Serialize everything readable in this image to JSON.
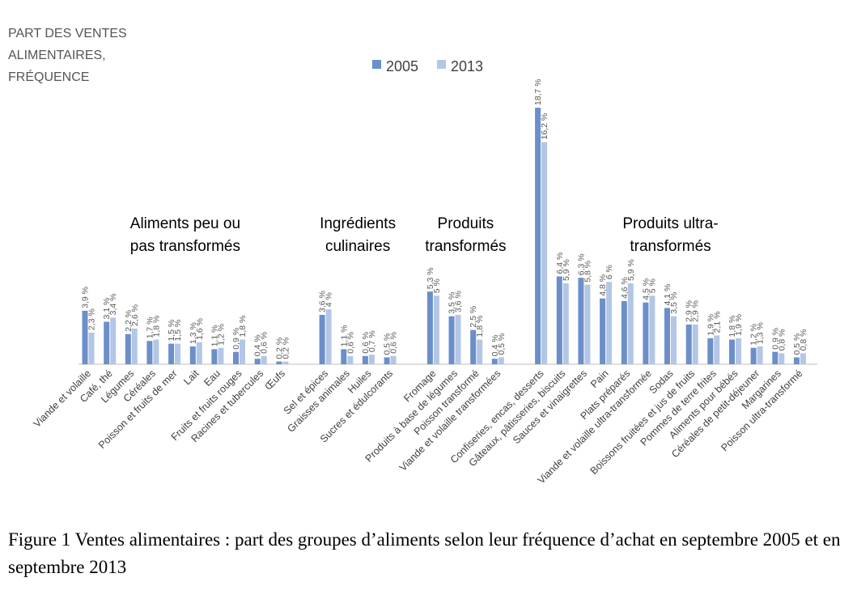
{
  "colors": {
    "2005": "#6b8fc9",
    "2013": "#b3c6e6"
  },
  "caption": "Figure 1 Ventes alimentaires : part des groupes d’aliments selon leur fréquence d’achat en septembre 2005 et en septembre 2013",
  "chart_data": {
    "type": "bar",
    "ylabel": [
      "PART DES VENTES",
      "ALIMENTAIRES,",
      "FRÉQUENCE"
    ],
    "legend": {
      "position": "top-center"
    },
    "grid": false,
    "ylim": [
      0,
      19
    ],
    "series": [
      {
        "name": "2005"
      },
      {
        "name": "2013"
      }
    ],
    "groups": [
      {
        "label": [
          "Aliments peu ou",
          "pas transformés"
        ],
        "items": [
          {
            "category": "Viande et volaille",
            "v2005": 3.9,
            "v2013": 2.3,
            "l2005": "3,9 %",
            "l2013": "2,3 %"
          },
          {
            "category": "Café, thé",
            "v2005": 3.1,
            "v2013": 3.4,
            "l2005": "3,1 %",
            "l2013": "3,4 %"
          },
          {
            "category": "Légumes",
            "v2005": 2.2,
            "v2013": 2.6,
            "l2005": "2,2 %",
            "l2013": "2,6 %"
          },
          {
            "category": "Céréales",
            "v2005": 1.7,
            "v2013": 1.8,
            "l2005": "1,7 %",
            "l2013": "1,8 %"
          },
          {
            "category": "Poisson et fruits de mer",
            "v2005": 1.5,
            "v2013": 1.5,
            "l2005": "1,5 %",
            "l2013": "1,5 %"
          },
          {
            "category": "Lait",
            "v2005": 1.3,
            "v2013": 1.6,
            "l2005": "1,3 %",
            "l2013": "1,6 %"
          },
          {
            "category": "Eau",
            "v2005": 1.1,
            "v2013": 1.2,
            "l2005": "1,1 %",
            "l2013": "1,2 %"
          },
          {
            "category": "Fruits et fruits rouges",
            "v2005": 0.9,
            "v2013": 1.8,
            "l2005": "0,9 %",
            "l2013": "1,8 %"
          },
          {
            "category": "Racines et tubercules",
            "v2005": 0.4,
            "v2013": 0.6,
            "l2005": "0,4 %",
            "l2013": "0,6 %"
          },
          {
            "category": "Œufs",
            "v2005": 0.2,
            "v2013": 0.2,
            "l2005": "0,2 %",
            "l2013": "0,2 %"
          }
        ]
      },
      {
        "label": [
          "Ingrédients",
          "culinaires"
        ],
        "items": [
          {
            "category": "Sel et épices",
            "v2005": 3.6,
            "v2013": 4.0,
            "l2005": "3,6 %",
            "l2013": "4 %"
          },
          {
            "category": "Graisses animales",
            "v2005": 1.1,
            "v2013": 0.6,
            "l2005": "1,1 %",
            "l2013": "0,6 %"
          },
          {
            "category": "Huiles",
            "v2005": 0.6,
            "v2013": 0.7,
            "l2005": "0,6 %",
            "l2013": "0,7 %"
          },
          {
            "category": "Sucres et édulcorants",
            "v2005": 0.5,
            "v2013": 0.6,
            "l2005": "0,5 %",
            "l2013": "0,6 %"
          }
        ]
      },
      {
        "label": [
          "Produits",
          "transformés"
        ],
        "items": [
          {
            "category": "Fromage",
            "v2005": 5.3,
            "v2013": 5.0,
            "l2005": "5,3 %",
            "l2013": "5 %"
          },
          {
            "category": "Produits à base de légumes",
            "v2005": 3.5,
            "v2013": 3.6,
            "l2005": "3,5 %",
            "l2013": "3,6 %"
          },
          {
            "category": "Poisson transformé",
            "v2005": 2.5,
            "v2013": 1.8,
            "l2005": "2,5 %",
            "l2013": "1,8 %"
          },
          {
            "category": "Viande et volaille transformées",
            "v2005": 0.4,
            "v2013": 0.5,
            "l2005": "0,4 %",
            "l2013": "0,5 %"
          }
        ]
      },
      {
        "label": [
          "Produits ultra-",
          "transformés"
        ],
        "items": [
          {
            "category": "Confiseries, encas, desserts",
            "v2005": 18.7,
            "v2013": 16.2,
            "l2005": "18,7 %",
            "l2013": "16,2 %"
          },
          {
            "category": "Gâteaux, pâtisseries, biscuits",
            "v2005": 6.4,
            "v2013": 5.9,
            "l2005": "6,4 %",
            "l2013": "5,9 %"
          },
          {
            "category": "Sauces et vinaigrettes",
            "v2005": 6.3,
            "v2013": 5.8,
            "l2005": "6,3 %",
            "l2013": "5,8 %"
          },
          {
            "category": "Pain",
            "v2005": 4.8,
            "v2013": 6.0,
            "l2005": "4,8 %",
            "l2013": "6 %"
          },
          {
            "category": "Plats préparés",
            "v2005": 4.6,
            "v2013": 5.9,
            "l2005": "4,6 %",
            "l2013": "5,9 %"
          },
          {
            "category": "Viande et volaille ultra-transformée",
            "v2005": 4.5,
            "v2013": 5.0,
            "l2005": "4,5 %",
            "l2013": "5 %"
          },
          {
            "category": "Sodas",
            "v2005": 4.1,
            "v2013": 3.5,
            "l2005": "4,1 %",
            "l2013": "3,5 %"
          },
          {
            "category": "Boissons fruitées et jus de fruits",
            "v2005": 2.9,
            "v2013": 2.9,
            "l2005": "2,9 %",
            "l2013": "2,9 %"
          },
          {
            "category": "Pommes de terre frites",
            "v2005": 1.9,
            "v2013": 2.1,
            "l2005": "1,9 %",
            "l2013": "2,1 %"
          },
          {
            "category": "Aliments pour bébés",
            "v2005": 1.8,
            "v2013": 1.9,
            "l2005": "1,8 %",
            "l2013": "1,9 %"
          },
          {
            "category": "Céréales de petit-déjeuner",
            "v2005": 1.2,
            "v2013": 1.3,
            "l2005": "1,2 %",
            "l2013": "1,3 %"
          },
          {
            "category": "Margarines",
            "v2005": 0.9,
            "v2013": 0.8,
            "l2005": "0,9 %",
            "l2013": "0,8 %"
          },
          {
            "category": "Poisson ultra-transformé",
            "v2005": 0.5,
            "v2013": 0.8,
            "l2005": "0,5 %",
            "l2013": "0,8 %"
          }
        ]
      }
    ]
  }
}
